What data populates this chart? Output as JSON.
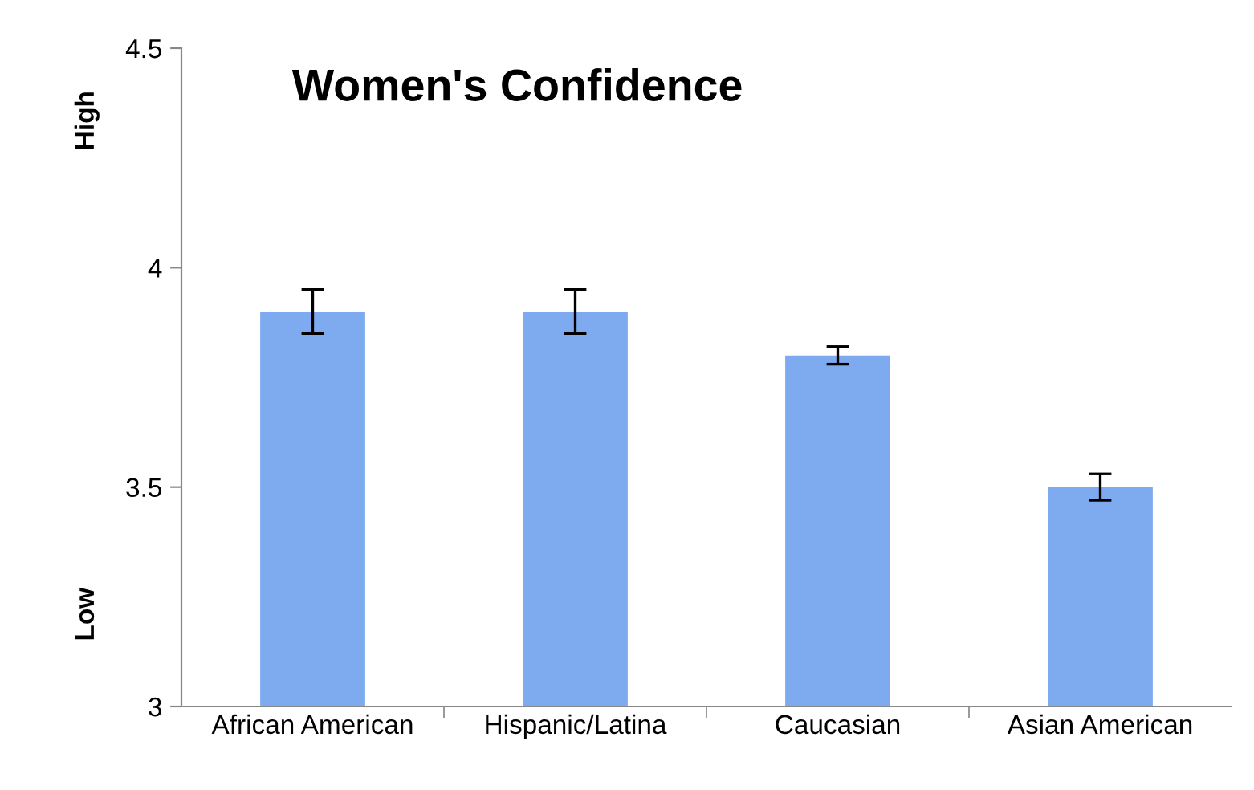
{
  "chart_data": {
    "type": "bar",
    "title": "Women's Confidence",
    "categories": [
      "African American",
      "Hispanic/Latina",
      "Caucasian",
      "Asian American"
    ],
    "values": [
      3.9,
      3.9,
      3.8,
      3.5
    ],
    "errors": [
      0.05,
      0.05,
      0.02,
      0.03
    ],
    "color": "#7eaaf0",
    "ylim": [
      3,
      4.5
    ],
    "yticks": [
      3,
      3.5,
      4,
      4.5
    ],
    "grid": false,
    "annotations": [
      "Low",
      "High"
    ]
  }
}
